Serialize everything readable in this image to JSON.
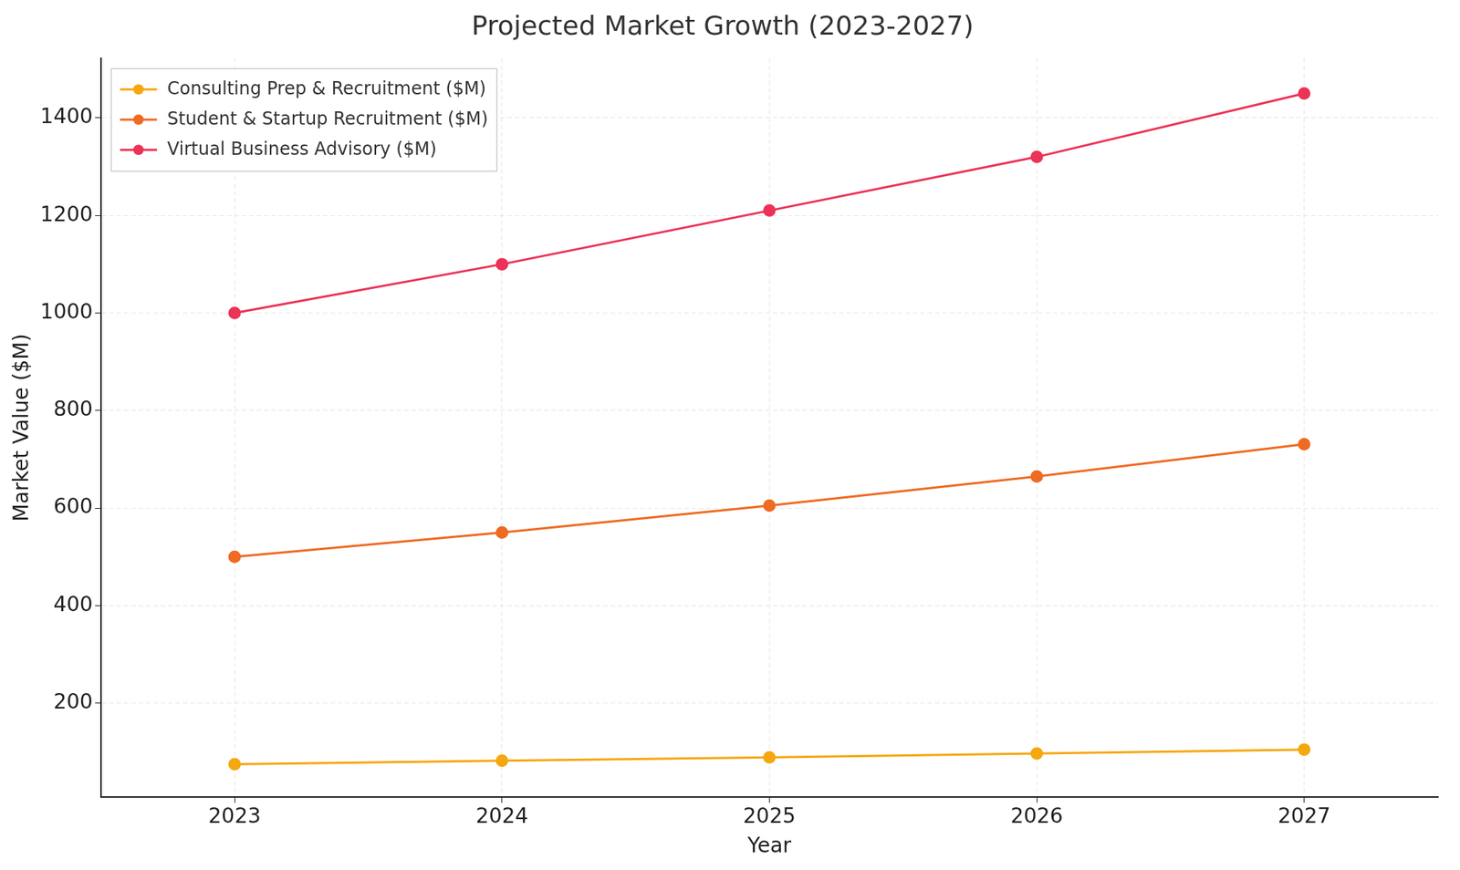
{
  "chart_data": {
    "type": "line",
    "title": "Projected Market Growth (2023-2027)",
    "x_label": "Year",
    "y_label": "Market Value ($M)",
    "categories": [
      "2023",
      "2024",
      "2025",
      "2026",
      "2027"
    ],
    "series": [
      {
        "name": "Consulting Prep & Recruitment ($M)",
        "color": "#f5a70f",
        "values": [
          75,
          82,
          89,
          97,
          105
        ]
      },
      {
        "name": "Student & Startup Recruitment ($M)",
        "color": "#ef6a22",
        "values": [
          500,
          550,
          605,
          665,
          731
        ]
      },
      {
        "name": "Virtual Business Advisory ($M)",
        "color": "#ec3256",
        "values": [
          1000,
          1100,
          1210,
          1320,
          1450
        ]
      }
    ],
    "ylim": [
      8,
      1522
    ],
    "yticks": [
      200,
      400,
      600,
      800,
      1000,
      1200,
      1400
    ],
    "grid": true,
    "legend": "upper left",
    "marker": "circle"
  }
}
